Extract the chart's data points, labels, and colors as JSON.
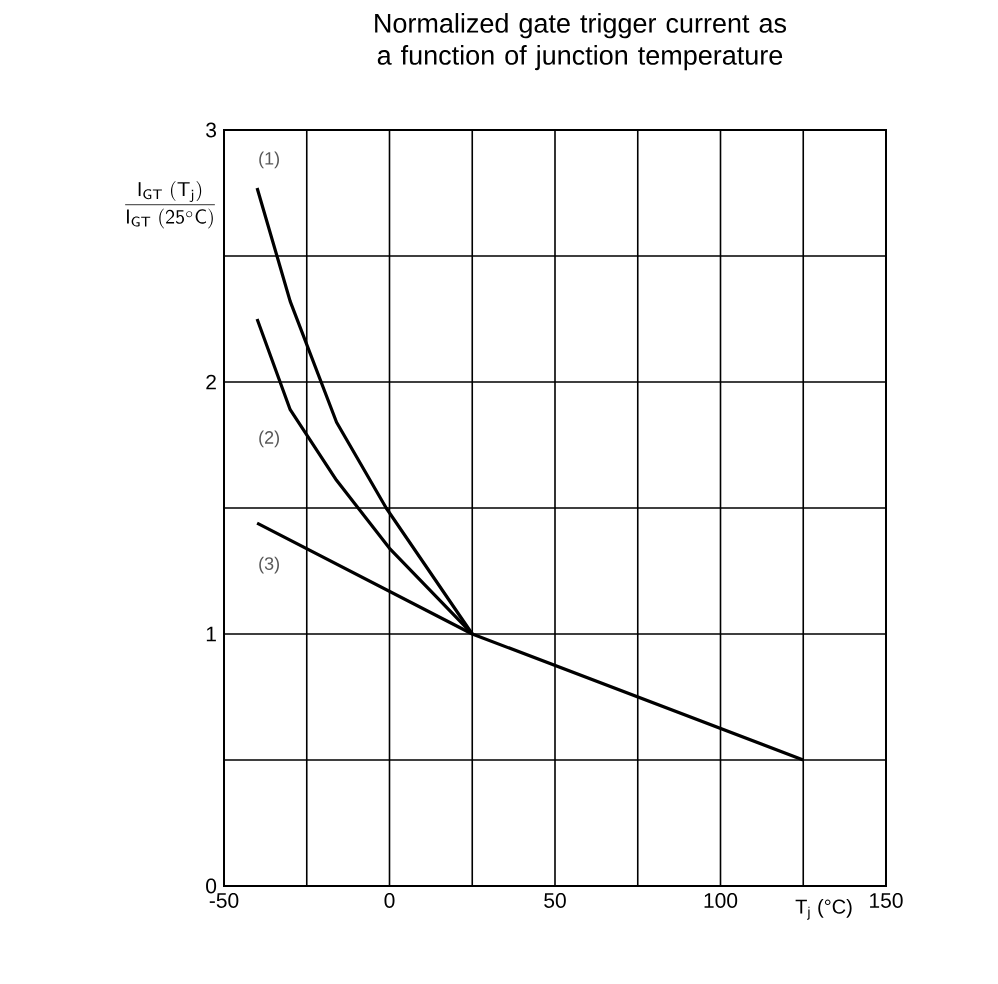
{
  "chart_data": {
    "type": "line",
    "title": "Normalized gate trigger current as a function of junction temperature",
    "xlabel": "T$_{j}$ (°C)",
    "ylabel": "\\frac{\\mathsf{I_{GT}\\ (T_j)}}{\\mathsf{I_{GT}\\ (25^{\\circ}C)}}",
    "series": [
      {
        "x": [
          -40,
          -30,
          -16,
          -1,
          25
        ],
        "values": [
          2.77,
          2.32,
          1.84,
          1.5,
          1
        ],
        "color": "#000000"
      },
      {
        "x": [
          -40,
          -30,
          -16,
          0,
          25
        ],
        "values": [
          2.25,
          1.89,
          1.61,
          1.34,
          1
        ],
        "color": "#000000"
      },
      {
        "x": [
          -40,
          25,
          125
        ],
        "values": [
          1.44,
          1,
          0.5
        ],
        "color": "#000000"
      }
    ],
    "annotations": [
      "(1)",
      "(2)",
      "(3)"
    ],
    "xlim": [
      -50,
      150
    ],
    "ylim": [
      0,
      3
    ],
    "xticks": [
      -50,
      {
        "value": -25,
        "label": null
      },
      0,
      {
        "value": 25,
        "label": null
      },
      50,
      {
        "value": 75,
        "label": null
      },
      100,
      {
        "value": 125,
        "label": null
      },
      150
    ],
    "yticks": [
      0,
      {
        "value": 0.5,
        "label": null
      },
      1,
      {
        "value": 1.5,
        "label": null
      },
      2,
      {
        "value": 2.5,
        "label": null
      },
      3
    ],
    "grid": true,
    "marker": "none",
    "line_style": "solid"
  }
}
